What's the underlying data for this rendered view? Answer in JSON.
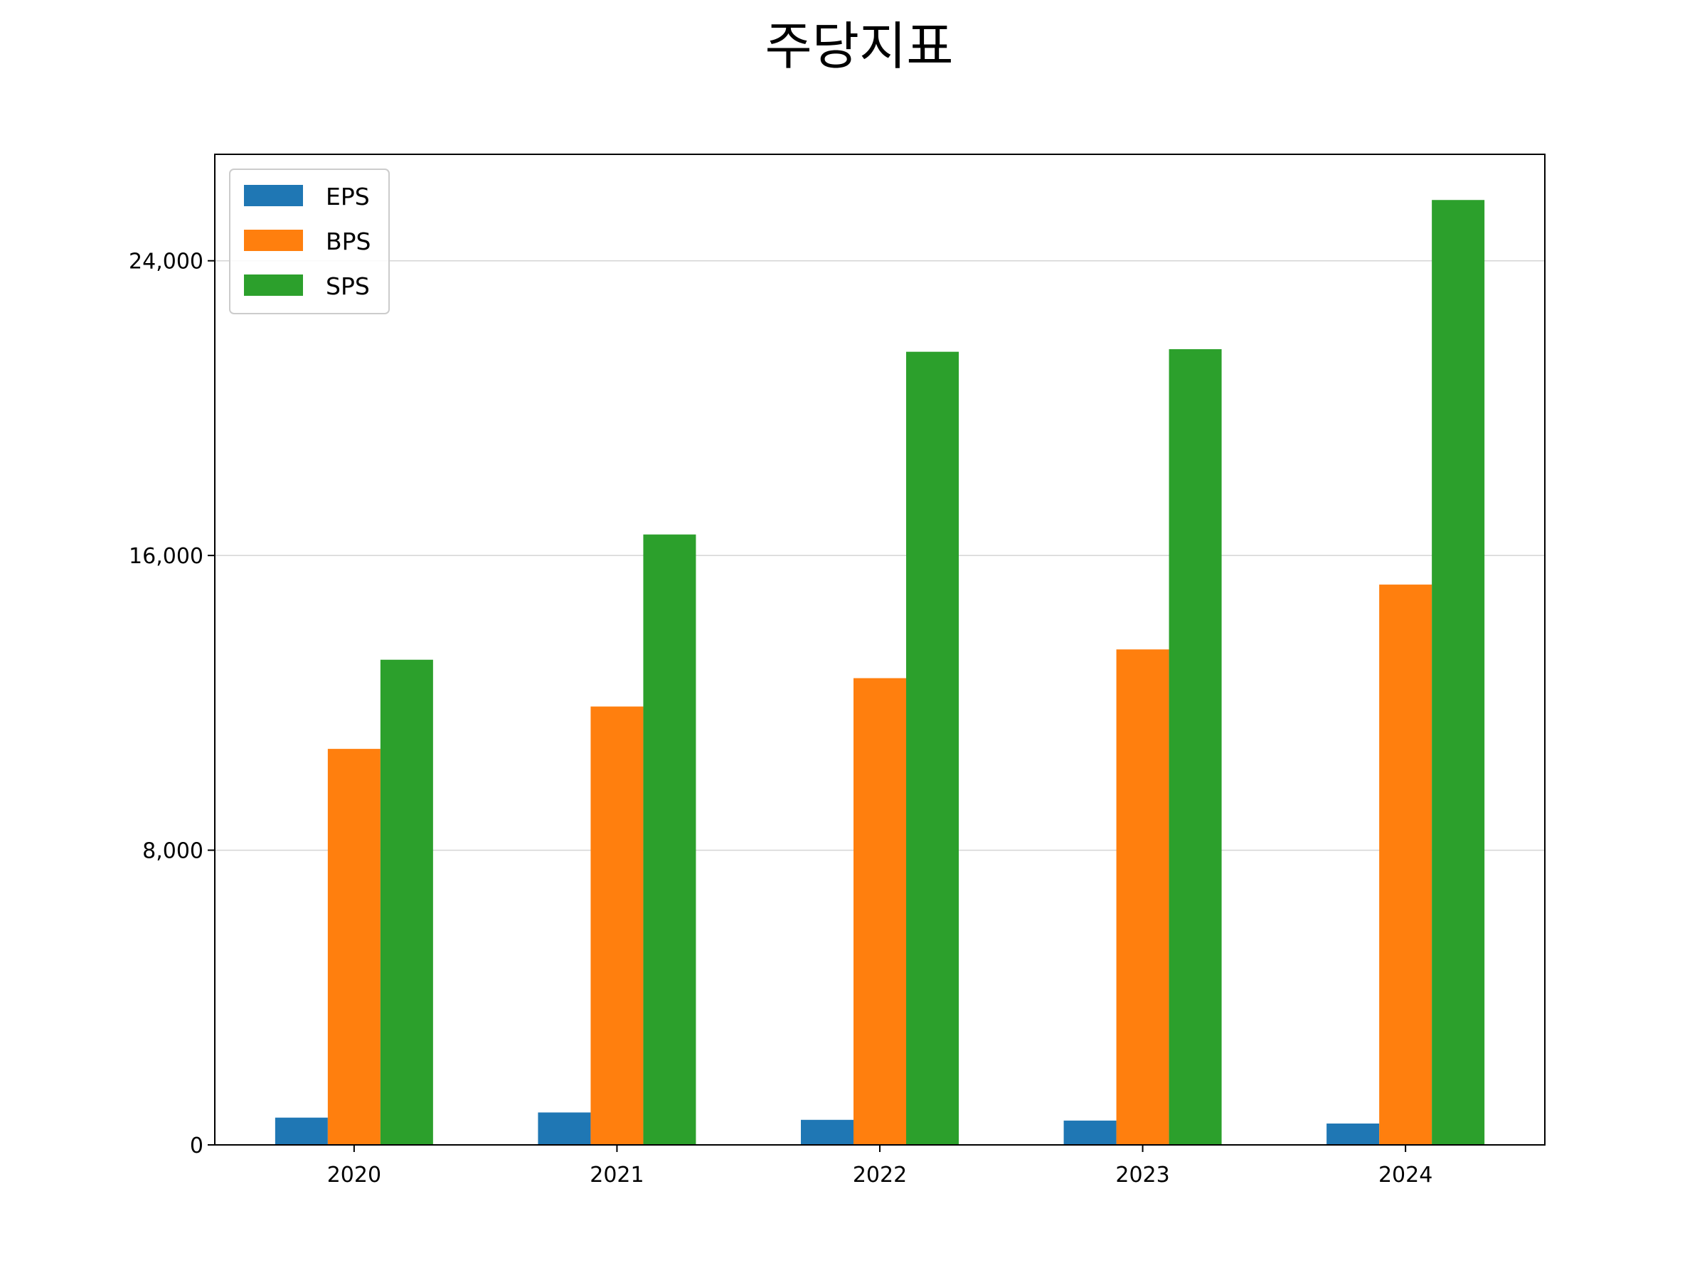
{
  "chart_data": {
    "type": "bar",
    "title": "주당지표",
    "xlabel": "",
    "ylabel": "",
    "categories": [
      "2020",
      "2021",
      "2022",
      "2023",
      "2024"
    ],
    "series": [
      {
        "name": "EPS",
        "color": "#1f77b4",
        "values": [
          740,
          880,
          680,
          660,
          580
        ]
      },
      {
        "name": "BPS",
        "color": "#ff7f0e",
        "values": [
          10750,
          11900,
          12670,
          13450,
          15210
        ]
      },
      {
        "name": "SPS",
        "color": "#2ca02c",
        "values": [
          13170,
          16570,
          21530,
          21600,
          25650
        ]
      }
    ],
    "ylim": [
      0,
      26890
    ],
    "yticks": [
      0,
      8000,
      16000,
      24000
    ],
    "ytick_labels": [
      "0",
      "8,000",
      "16,000",
      "24,000"
    ],
    "grid": "horizontal",
    "legend_position": "upper left"
  }
}
